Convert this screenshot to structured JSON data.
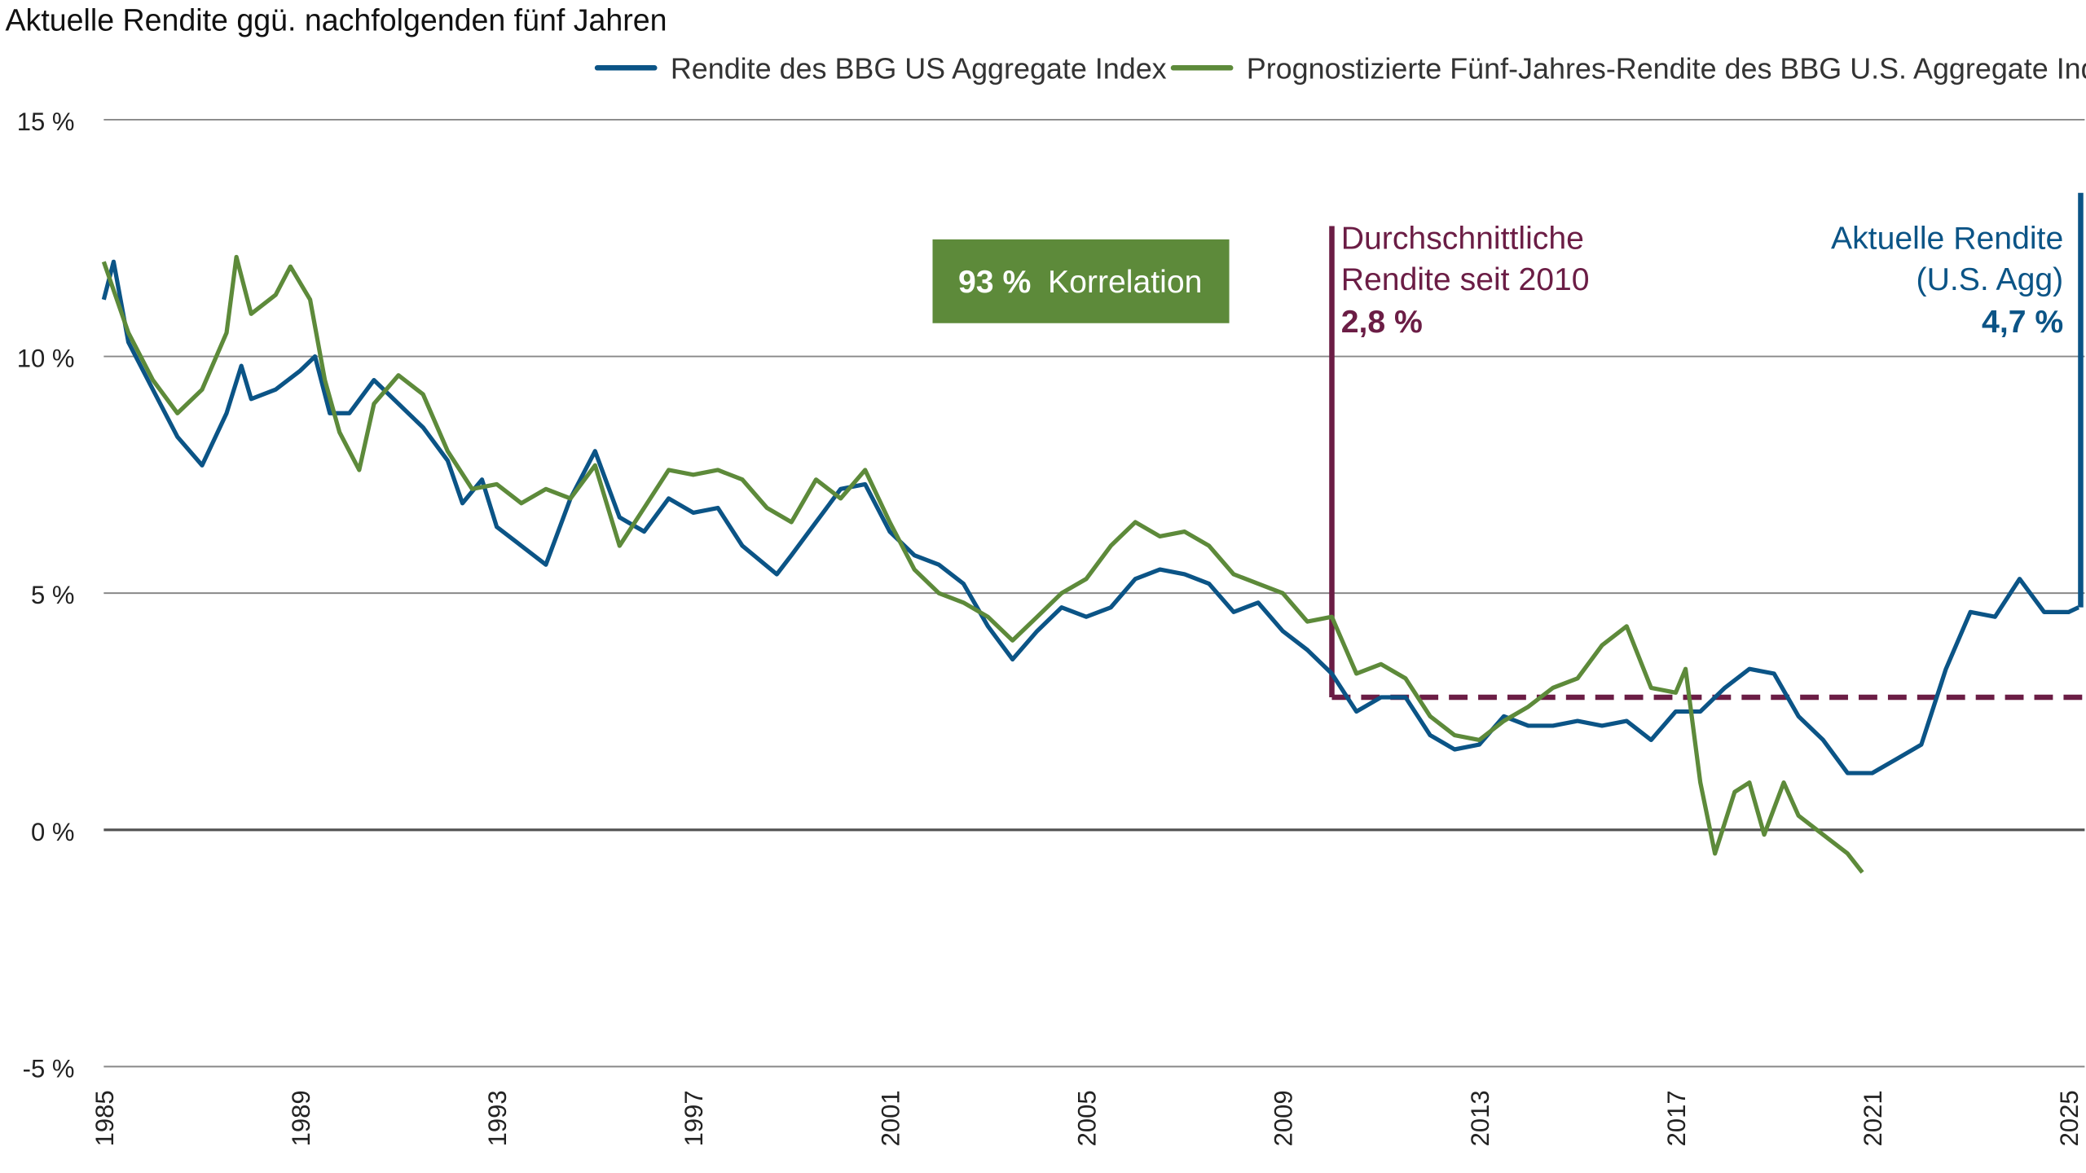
{
  "chart_data": {
    "type": "line",
    "title": "Aktuelle Rendite ggü. nachfolgenden fünf Jahren",
    "xlabel": "",
    "ylabel": "",
    "xlim": [
      1985,
      2025
    ],
    "ylim": [
      -5,
      15
    ],
    "x_ticks": [
      "1985",
      "1989",
      "1993",
      "1997",
      "2001",
      "2005",
      "2009",
      "2013",
      "2017",
      "2021",
      "2025"
    ],
    "y_ticks": [
      {
        "value": 15,
        "label": "15 %"
      },
      {
        "value": 10,
        "label": "10 %"
      },
      {
        "value": 5,
        "label": "5 %"
      },
      {
        "value": 0,
        "label": "0 %"
      },
      {
        "value": -5,
        "label": "-5 %"
      }
    ],
    "grid": "horizontal",
    "legend_position": "top-right",
    "series": [
      {
        "name": "Rendite des BBG US Aggregate Index",
        "color": "#0b5486",
        "x": [
          1985.0,
          1985.2,
          1985.5,
          1986,
          1986.5,
          1987,
          1987.5,
          1987.8,
          1988,
          1988.5,
          1989,
          1989.3,
          1989.6,
          1990,
          1990.5,
          1991,
          1991.5,
          1992,
          1992.3,
          1992.7,
          1993,
          1993.5,
          1994,
          1994.5,
          1995,
          1995.5,
          1996,
          1996.5,
          1997,
          1997.5,
          1998,
          1998.7,
          1999,
          1999.5,
          2000,
          2000.5,
          2001,
          2001.5,
          2002,
          2002.5,
          2003,
          2003.5,
          2004,
          2004.5,
          2005,
          2005.5,
          2006,
          2006.5,
          2007,
          2007.5,
          2008,
          2008.5,
          2009,
          2009.5,
          2010,
          2010.5,
          2011,
          2011.5,
          2012,
          2012.5,
          2013,
          2013.5,
          2014,
          2014.5,
          2015,
          2015.5,
          2016,
          2016.5,
          2017,
          2017.5,
          2018,
          2018.5,
          2019,
          2019.5,
          2020,
          2020.5,
          2021,
          2021.5,
          2022,
          2022.5,
          2023,
          2023.5,
          2024,
          2024.5,
          2025,
          2025.2
        ],
        "y": [
          11.2,
          12.0,
          10.3,
          9.3,
          8.3,
          7.7,
          8.8,
          9.8,
          9.1,
          9.3,
          9.7,
          10.0,
          8.8,
          8.8,
          9.5,
          9.0,
          8.5,
          7.8,
          6.9,
          7.4,
          6.4,
          6.0,
          5.6,
          7.0,
          8.0,
          6.6,
          6.3,
          7.0,
          6.7,
          6.8,
          6.0,
          5.4,
          5.8,
          6.5,
          7.2,
          7.3,
          6.3,
          5.8,
          5.6,
          5.2,
          4.3,
          3.6,
          4.2,
          4.7,
          4.5,
          4.7,
          5.3,
          5.5,
          5.4,
          5.2,
          4.6,
          4.8,
          4.2,
          3.8,
          3.3,
          2.5,
          2.8,
          2.8,
          2.0,
          1.7,
          1.8,
          2.4,
          2.2,
          2.2,
          2.3,
          2.2,
          2.3,
          1.9,
          2.5,
          2.5,
          3.0,
          3.4,
          3.3,
          2.4,
          1.9,
          1.2,
          1.2,
          1.5,
          1.8,
          3.4,
          4.6,
          4.5,
          5.3,
          4.6,
          4.6,
          4.7
        ]
      },
      {
        "name": "Prognostizierte Fünf-Jahres-Rendite des BBG U.S. Aggregate Index",
        "color": "#5d8a3a",
        "x": [
          1985.0,
          1985.5,
          1986,
          1986.5,
          1987,
          1987.5,
          1987.7,
          1988,
          1988.5,
          1988.8,
          1989.2,
          1989.5,
          1989.8,
          1990.2,
          1990.5,
          1991,
          1991.5,
          1992,
          1992.5,
          1993,
          1993.5,
          1994,
          1994.5,
          1995,
          1995.5,
          1996,
          1996.5,
          1997,
          1997.5,
          1998,
          1998.5,
          1999,
          1999.5,
          2000,
          2000.5,
          2001,
          2001.5,
          2002,
          2002.5,
          2003,
          2003.5,
          2004,
          2004.5,
          2005,
          2005.5,
          2006,
          2006.5,
          2007,
          2007.5,
          2008,
          2008.5,
          2009,
          2009.5,
          2010,
          2010.5,
          2011,
          2011.5,
          2012,
          2012.5,
          2013,
          2013.5,
          2014,
          2014.5,
          2015,
          2015.5,
          2016,
          2016.5,
          2017,
          2017.2,
          2017.5,
          2017.8,
          2018.2,
          2018.5,
          2018.8,
          2019.2,
          2019.5,
          2020,
          2020.5,
          2020.8
        ],
        "y": [
          12.0,
          10.5,
          9.5,
          8.8,
          9.3,
          10.5,
          12.1,
          10.9,
          11.3,
          11.9,
          11.2,
          9.5,
          8.4,
          7.6,
          9.0,
          9.6,
          9.2,
          8.0,
          7.2,
          7.3,
          6.9,
          7.2,
          7.0,
          7.7,
          6.0,
          6.8,
          7.6,
          7.5,
          7.6,
          7.4,
          6.8,
          6.5,
          7.4,
          7.0,
          7.6,
          6.5,
          5.5,
          5.0,
          4.8,
          4.5,
          4.0,
          4.5,
          5.0,
          5.3,
          6.0,
          6.5,
          6.2,
          6.3,
          6.0,
          5.4,
          5.2,
          5.0,
          4.4,
          4.5,
          3.3,
          3.5,
          3.2,
          2.4,
          2.0,
          1.9,
          2.3,
          2.6,
          3.0,
          3.2,
          3.9,
          4.3,
          3.0,
          2.9,
          3.4,
          1.0,
          -0.5,
          0.8,
          1.0,
          -0.1,
          1.0,
          0.3,
          -0.1,
          -0.5,
          -0.9
        ]
      }
    ],
    "annotations": {
      "correlation": {
        "value": "93 %",
        "label": "Korrelation",
        "color": "#5d8a3a"
      },
      "average": {
        "line1": "Durchschnittliche",
        "line2": "Rendite seit 2010",
        "value_label": "2,8 %",
        "value": 2.8,
        "start_year": 2010,
        "color": "#6b1d45"
      },
      "current": {
        "line1": "Aktuelle Rendite",
        "line2": "(U.S. Agg)",
        "value_label": "4,7 %",
        "value": 4.7,
        "color": "#0b5486"
      }
    }
  }
}
